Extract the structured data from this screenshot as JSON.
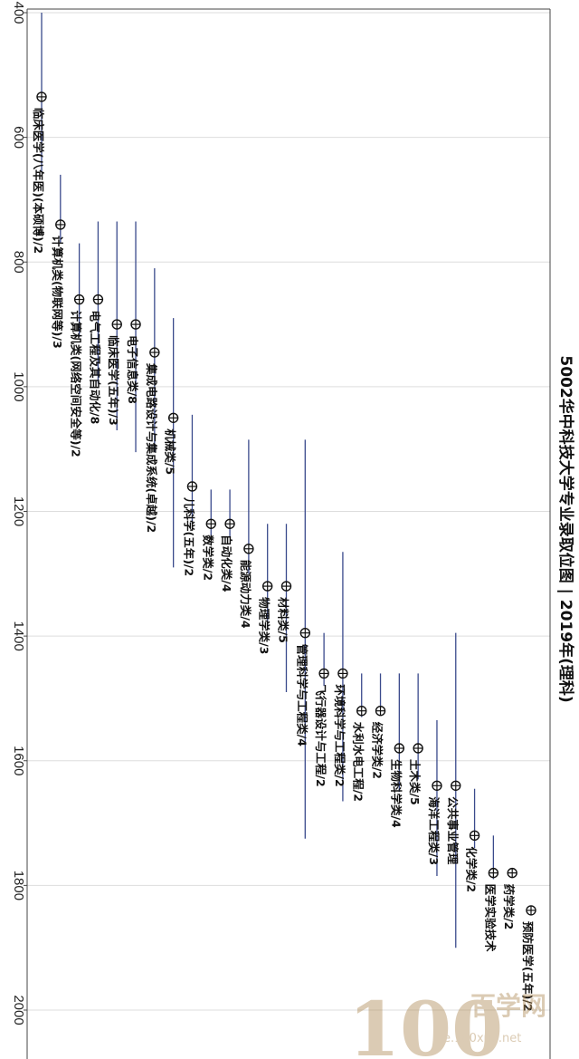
{
  "chart_data": {
    "type": "range-dot",
    "title": "5002华中科技大学专业录取位图 | 2019年(理科)",
    "rank_axis": {
      "ticks": [
        "400",
        "600",
        "800",
        "1000",
        "1200",
        "1400",
        "1600",
        "1800",
        "2000"
      ],
      "range": [
        400,
        2080
      ]
    },
    "grid": true,
    "series_colors": {
      "range": "#3a4a8c",
      "marker": "#111111",
      "grid": "#dddddd",
      "axis": "#444444"
    },
    "items": [
      {
        "label": "临床医学(八年医)(本硕博)/2",
        "rank": 535,
        "min": 400,
        "max": 655
      },
      {
        "label": "计算机类(物联网等)/3",
        "rank": 740,
        "min": 660,
        "max": 770
      },
      {
        "label": "计算机类(网络空间安全等)/2",
        "rank": 860,
        "min": 770,
        "max": 920
      },
      {
        "label": "电气工程及其自动化/8",
        "rank": 860,
        "min": 735,
        "max": 995
      },
      {
        "label": "临床医学(五年)/3",
        "rank": 900,
        "min": 735,
        "max": 1070
      },
      {
        "label": "电子信息类/8",
        "rank": 900,
        "min": 735,
        "max": 1105
      },
      {
        "label": "集成电路设计与集成系统(卓越)/2",
        "rank": 945,
        "min": 810,
        "max": 1105
      },
      {
        "label": "机械类/5",
        "rank": 1050,
        "min": 890,
        "max": 1290
      },
      {
        "label": "儿科学(五年)/2",
        "rank": 1160,
        "min": 1045,
        "max": 1220
      },
      {
        "label": "数学类/2",
        "rank": 1220,
        "min": 1165,
        "max": 1240
      },
      {
        "label": "自动化类/4",
        "rank": 1220,
        "min": 1165,
        "max": 1240
      },
      {
        "label": "能源动力类/4",
        "rank": 1260,
        "min": 1085,
        "max": 1300
      },
      {
        "label": "物理学类/3",
        "rank": 1320,
        "min": 1220,
        "max": 1390
      },
      {
        "label": "材料类/5",
        "rank": 1320,
        "min": 1220,
        "max": 1490
      },
      {
        "label": "管理科学与工程类/4",
        "rank": 1395,
        "min": 1085,
        "max": 1725
      },
      {
        "label": "飞行器设计与工程/2",
        "rank": 1460,
        "min": 1395,
        "max": 1480
      },
      {
        "label": "环境科学与工程类/2",
        "rank": 1460,
        "min": 1265,
        "max": 1665
      },
      {
        "label": "水利水电工程/2",
        "rank": 1520,
        "min": 1460,
        "max": 1530
      },
      {
        "label": "经济学类/2",
        "rank": 1520,
        "min": 1460,
        "max": 1520
      },
      {
        "label": "生物科学类/4",
        "rank": 1580,
        "min": 1460,
        "max": 1650
      },
      {
        "label": "土木类/5",
        "rank": 1580,
        "min": 1460,
        "max": 1630
      },
      {
        "label": "海洋工程类/3",
        "rank": 1640,
        "min": 1535,
        "max": 1785
      },
      {
        "label": "公共事业管理",
        "rank": 1640,
        "min": 1395,
        "max": 1900
      },
      {
        "label": "化学类/2",
        "rank": 1720,
        "min": 1645,
        "max": 1740
      },
      {
        "label": "医学实验技术",
        "rank": 1780,
        "min": 1720,
        "max": 1790
      },
      {
        "label": "药学类/2",
        "rank": 1780,
        "min": 1780,
        "max": 1780
      },
      {
        "label": "预防医学(五年)/2",
        "rank": 1840,
        "min": 1840,
        "max": 1840
      }
    ]
  },
  "watermark": {
    "number": "100",
    "text": "百学网",
    "sub": "e.100xue.net"
  }
}
